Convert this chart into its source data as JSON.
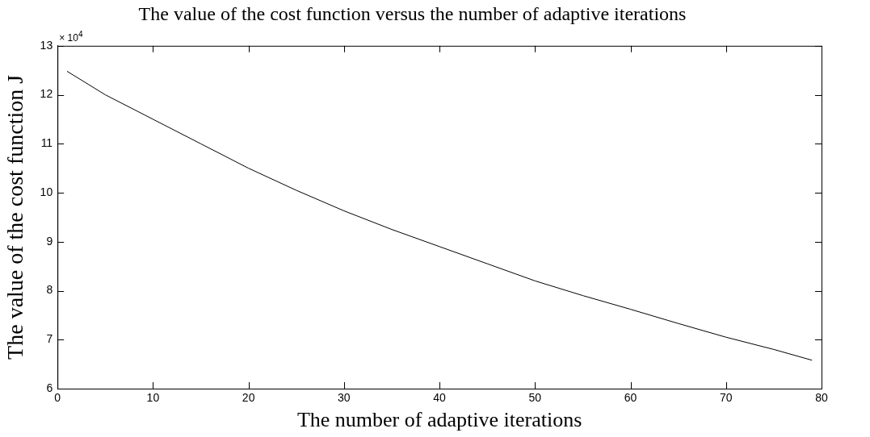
{
  "chart_data": {
    "type": "line",
    "title": "The value of the cost function versus the number of adaptive iterations",
    "xlabel": "The number of adaptive iterations",
    "ylabel": "The value of the cost function J",
    "annotations": [
      "× 10$^{4}$"
    ],
    "x": [
      1,
      5,
      10,
      15,
      20,
      25,
      30,
      35,
      40,
      45,
      50,
      55,
      60,
      65,
      70,
      75,
      79
    ],
    "series": [
      {
        "color": "#000000",
        "values": [
          12.48,
          12.0,
          11.5,
          11.0,
          10.5,
          10.05,
          9.63,
          9.25,
          8.9,
          8.55,
          8.2,
          7.9,
          7.62,
          7.33,
          7.05,
          6.8,
          6.58
        ]
      }
    ],
    "xlim": [
      0,
      80
    ],
    "xticks": [
      0,
      10,
      20,
      30,
      40,
      50,
      60,
      70,
      80
    ],
    "ylim": [
      6,
      13
    ],
    "yticks": [
      6,
      7,
      8,
      9,
      10,
      11,
      12,
      13
    ],
    "grid": false,
    "legend": false,
    "marker": "none",
    "line_style": "solid"
  }
}
